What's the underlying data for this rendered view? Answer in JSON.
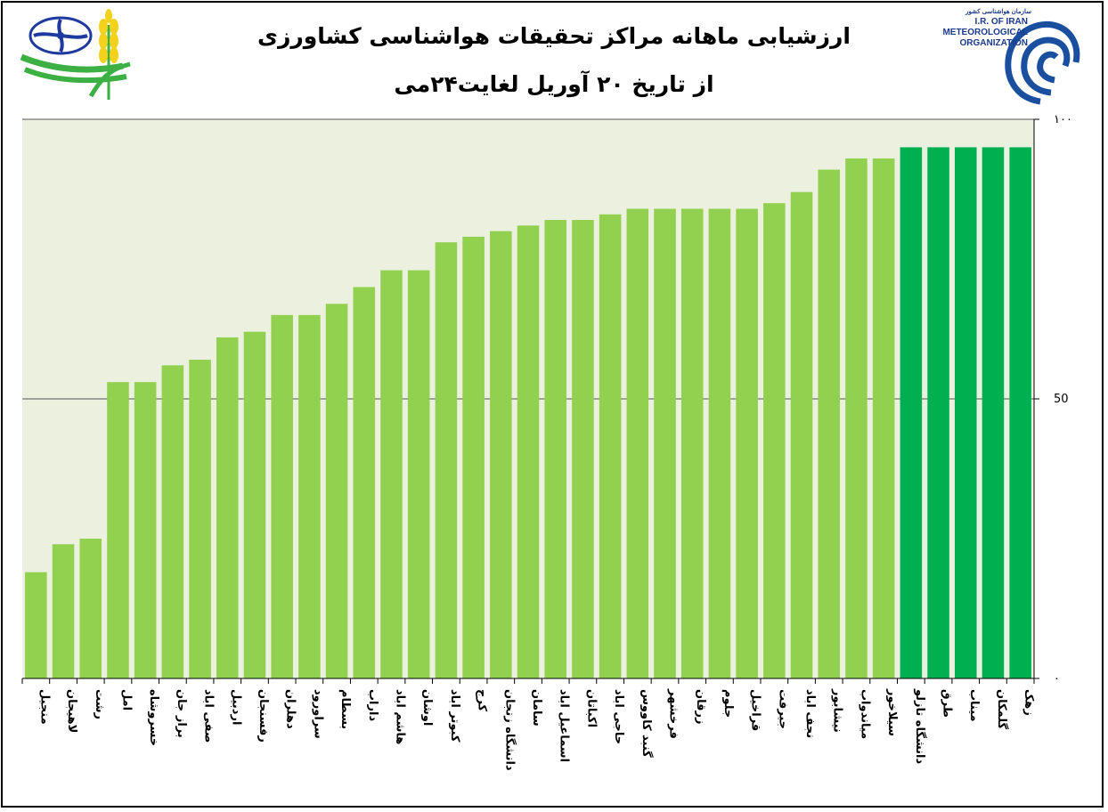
{
  "header": {
    "title_line1": "ارزشیابی ماهانه مراکز تحقیقات هواشناسی کشاورزی",
    "title_line2": "از تاریخ  ۲۰ آوریل لغایت۲۴می",
    "org_name_fa": "سازمان هواشناسی کشور",
    "org_name_en_1": "I.R. OF IRAN",
    "org_name_en_2": "METEOROLOGICAL",
    "org_name_en_3": "ORGANIZATION"
  },
  "colors": {
    "plot_background": "#ebf1de",
    "bar_light": "#92d050",
    "bar_dark": "#00b050",
    "gridline": "#555555"
  },
  "chart_data": {
    "type": "bar",
    "categories": [
      "منجیل",
      "لاهیجان",
      "رشت",
      "امل",
      "خسروشاه",
      "براز جان",
      "صفی اباد",
      "اردبیل",
      "رفسنجان",
      "دهلران",
      "سراورود",
      "بسطام",
      "داراب",
      "هاشم اباد",
      "اوشان",
      "کبوتر اباد",
      "کرج",
      "دانشگاه زنجان",
      "سامان",
      "اسماعیل اباد",
      "اکباتان",
      "حاجی اباد",
      "گنبد کاووس",
      "فرخشهر",
      "زرقان",
      "جلوم",
      "قراخیل",
      "جیرفت",
      "نجف اباد",
      "نیشابور",
      "میاندواب",
      "سیلاخور",
      "دانشگاه تازلو",
      "طرق",
      "میناب",
      "گلمکان",
      "زهک"
    ],
    "values": [
      19,
      24,
      25,
      53,
      53,
      56,
      57,
      61,
      62,
      65,
      65,
      67,
      70,
      73,
      73,
      78,
      79,
      80,
      81,
      82,
      82,
      83,
      84,
      84,
      84,
      84,
      84,
      85,
      87,
      91,
      93,
      93,
      95,
      95,
      95,
      95,
      95
    ],
    "highlight": [
      false,
      false,
      false,
      false,
      false,
      false,
      false,
      false,
      false,
      false,
      false,
      false,
      false,
      false,
      false,
      false,
      false,
      false,
      false,
      false,
      false,
      false,
      false,
      false,
      false,
      false,
      false,
      false,
      false,
      false,
      false,
      false,
      true,
      true,
      true,
      true,
      true
    ],
    "ylim": [
      0,
      100
    ],
    "y_ticks": [
      0,
      50,
      100
    ],
    "y_tick_labels": [
      "۰",
      "50",
      "۱۰۰"
    ],
    "y_axis_side": "right",
    "grid": true,
    "legend": "none"
  }
}
